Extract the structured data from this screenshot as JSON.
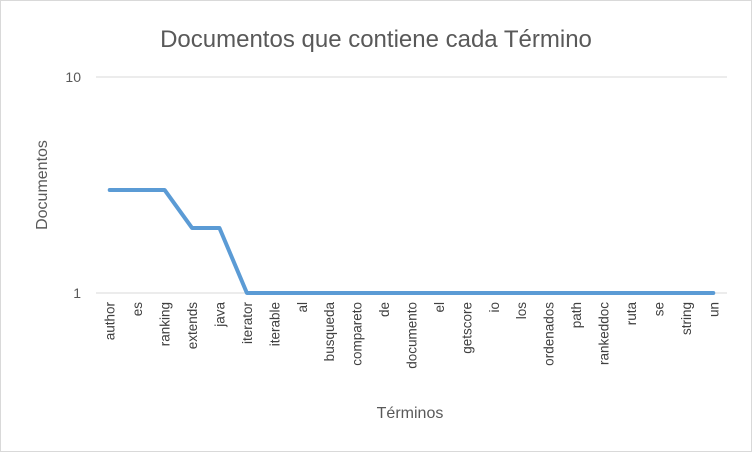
{
  "chart_data": {
    "type": "line",
    "title": "Documentos que contiene cada Término",
    "xlabel": "Términos",
    "ylabel": "Documentos",
    "yscale": "log",
    "ylim": [
      1,
      10
    ],
    "yticks": [
      "1",
      "10"
    ],
    "grid": true,
    "legend": "none",
    "series_color": "#5b9bd5",
    "categories": [
      "author",
      "es",
      "ranking",
      "extends",
      "java",
      "iterator",
      "iterable",
      "al",
      "busqueda",
      "compareto",
      "de",
      "documento",
      "el",
      "getscore",
      "io",
      "los",
      "ordenados",
      "path",
      "rankeddoc",
      "ruta",
      "se",
      "string",
      "un"
    ],
    "values": [
      3,
      3,
      3,
      2,
      2,
      1,
      1,
      1,
      1,
      1,
      1,
      1,
      1,
      1,
      1,
      1,
      1,
      1,
      1,
      1,
      1,
      1,
      1
    ]
  }
}
